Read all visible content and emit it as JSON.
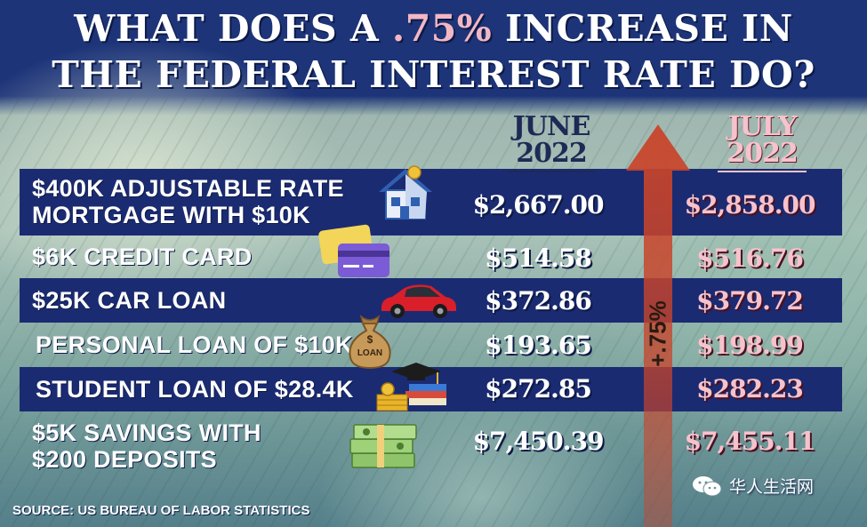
{
  "title": {
    "line1_before": "WHAT DOES A ",
    "line1_highlight": ".75%",
    "line1_after": " INCREASE IN",
    "line2": "THE FEDERAL INTEREST RATE DO?"
  },
  "columns": {
    "june_line1": "JUNE",
    "june_line2": "2022",
    "july_line1": "JULY",
    "july_line2": "2022"
  },
  "arrow": {
    "label": "+.75%",
    "color": "#c9442a"
  },
  "rows": [
    {
      "label_line1": "$400K ADJUSTABLE RATE",
      "label_line2": "MORTGAGE WITH $10K",
      "june": "$2,667.00",
      "july": "$2,858.00",
      "icon": "house-icon"
    },
    {
      "label_line1": "$6K CREDIT CARD",
      "june": "$514.58",
      "july": "$516.76",
      "icon": "credit-card-icon"
    },
    {
      "label_line1": "$25K CAR LOAN",
      "june": "$372.86",
      "july": "$379.72",
      "icon": "car-icon"
    },
    {
      "label_line1": "PERSONAL LOAN OF $10K",
      "june": "$193.65",
      "july": "$198.99",
      "icon": "money-bag-icon"
    },
    {
      "label_line1": "STUDENT LOAN OF $28.4K",
      "june": "$272.85",
      "july": "$282.23",
      "icon": "graduation-books-icon"
    },
    {
      "label_line1": "$5K SAVINGS WITH",
      "label_line2": "$200 DEPOSITS",
      "june": "$7,450.39",
      "july": "$7,455.11",
      "icon": "cash-stack-icon"
    }
  ],
  "money_bag_text": "LOAN",
  "money_bag_symbol": "$",
  "source": "SOURCE: US BUREAU OF LABOR STATISTICS",
  "watermark": "华人生活网",
  "colors": {
    "band": "#1b2b72",
    "july_text": "#f6c3cc",
    "title_highlight": "#f2b7c4"
  }
}
